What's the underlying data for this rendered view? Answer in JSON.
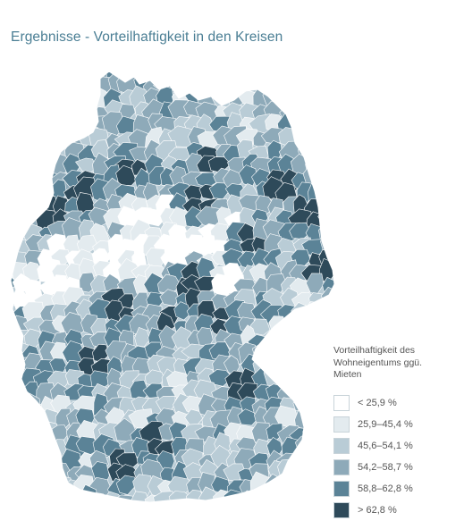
{
  "title": "Ergebnisse - Vorteilhaftigkeit in den Kreisen",
  "legend": {
    "title_lines": [
      "Vorteilhaftigkeit des",
      "Wohneigentums ggü.",
      "Mieten"
    ],
    "items": [
      {
        "label": "< 25,9 %",
        "color": "#ffffff"
      },
      {
        "label": "25,9–45,4 %",
        "color": "#e3ebef"
      },
      {
        "label": "45,6–54,1 %",
        "color": "#b9ccd6"
      },
      {
        "label": "54,2–58,7 %",
        "color": "#8eaab9"
      },
      {
        "label": "58,8–62,8 %",
        "color": "#5b8397"
      },
      {
        "label": "> 62,8 %",
        "color": "#2e4a5a"
      }
    ]
  },
  "map": {
    "subject": "Kreise in Deutschland",
    "class_colors": [
      "#ffffff",
      "#e3ebef",
      "#b9ccd6",
      "#8eaab9",
      "#5b8397",
      "#2e4a5a"
    ]
  }
}
